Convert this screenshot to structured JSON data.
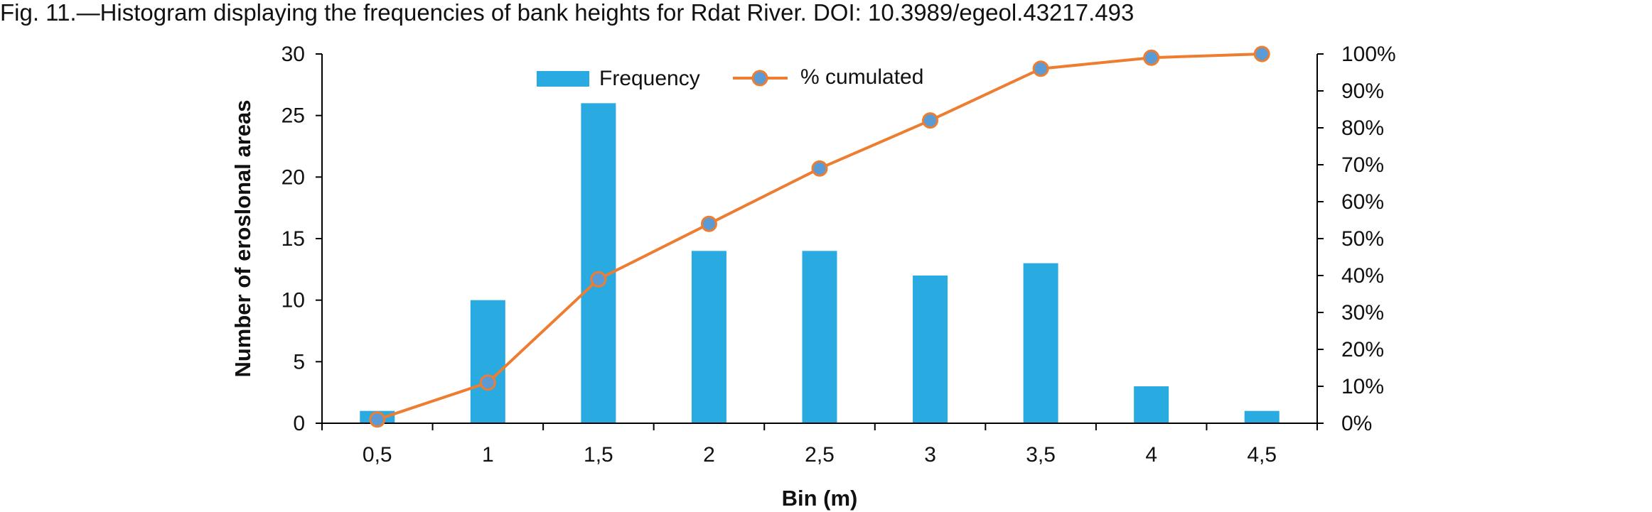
{
  "caption": "Fig. 11.—Histogram displaying the frequencies of bank heights for Rdat River.  DOI: 10.3989/egeol.43217.493",
  "colors": {
    "bar": "#29abe2",
    "line": "#ed7d31",
    "marker_fill": "#5b9bd5",
    "axis": "#000000"
  },
  "chart_data": {
    "type": "bar",
    "categories": [
      "0,5",
      "1",
      "1,5",
      "2",
      "2,5",
      "3",
      "3,5",
      "4",
      "4,5"
    ],
    "series": [
      {
        "name": "Frequency",
        "type": "bar",
        "axis": "left",
        "values": [
          1,
          10,
          26,
          14,
          14,
          12,
          13,
          3,
          1
        ]
      },
      {
        "name": "% cumulated",
        "type": "line",
        "axis": "right",
        "values": [
          1,
          11,
          39,
          54,
          69,
          82,
          96,
          99,
          100
        ]
      }
    ],
    "xlabel": "Bin (m)",
    "ylabel": "Number of eroslonal areas",
    "ylim": [
      0,
      30
    ],
    "yticks": [
      "0",
      "5",
      "10",
      "15",
      "20",
      "25",
      "30"
    ],
    "y2lim": [
      0,
      100
    ],
    "y2ticks": [
      "0%",
      "10%",
      "20%",
      "30%",
      "40%",
      "50%",
      "60%",
      "70%",
      "80%",
      "90%",
      "100%"
    ],
    "legend": "top-center",
    "grid": false
  }
}
